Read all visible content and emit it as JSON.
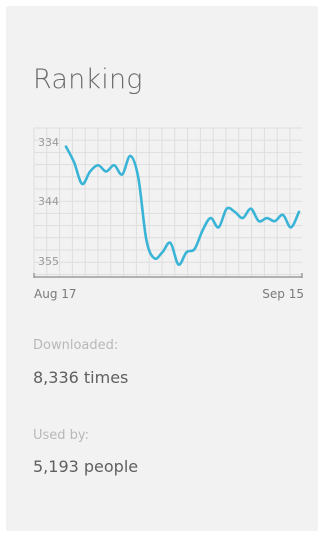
{
  "card": {
    "title": "Ranking",
    "downloaded_label": "Downloaded:",
    "downloaded_value": "8,336 times",
    "used_label": "Used by:",
    "used_value": "5,193 people"
  },
  "chart_data": {
    "type": "line",
    "title": "",
    "xlabel": "",
    "ylabel": "",
    "x_tick_labels": [
      "Aug 17",
      "Sep 15"
    ],
    "y_tick_labels": [
      "334",
      "344",
      "355"
    ],
    "y_inverted": true,
    "grid": true,
    "ylim": [
      333,
      357
    ],
    "color": "#3ab4d6",
    "series": [
      {
        "x": [
          "Aug 17",
          "Aug 18",
          "Aug 19",
          "Aug 20",
          "Aug 21",
          "Aug 22",
          "Aug 23",
          "Aug 24",
          "Aug 25",
          "Aug 26",
          "Aug 27",
          "Aug 28",
          "Aug 29",
          "Aug 30",
          "Aug 31",
          "Sep 1",
          "Sep 2",
          "Sep 3",
          "Sep 4",
          "Sep 5",
          "Sep 6",
          "Sep 7",
          "Sep 8",
          "Sep 9",
          "Sep 10",
          "Sep 11",
          "Sep 12",
          "Sep 13",
          "Sep 14",
          "Sep 15"
        ],
        "values": [
          336,
          338.5,
          342,
          340,
          339,
          340,
          339,
          340.5,
          337.5,
          341,
          351,
          354,
          353,
          351.5,
          355,
          353,
          352.5,
          349.5,
          347.5,
          349,
          346,
          346.5,
          347.5,
          346,
          348,
          347.5,
          348,
          347,
          349,
          346.5
        ]
      }
    ]
  }
}
